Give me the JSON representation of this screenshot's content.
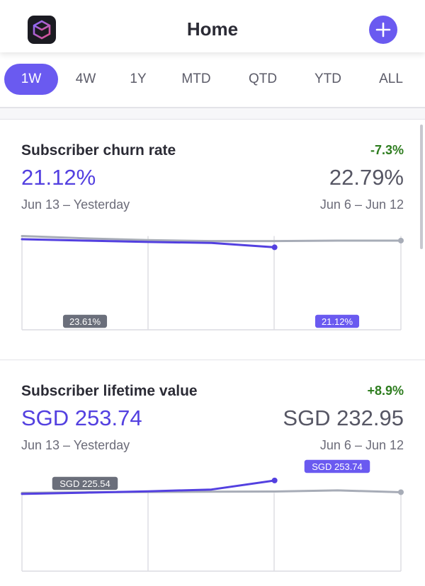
{
  "header": {
    "title": "Home",
    "logo_icon": "cube-logo-icon",
    "add_icon": "plus-icon"
  },
  "tabs": [
    {
      "label": "1W",
      "active": true
    },
    {
      "label": "4W",
      "active": false
    },
    {
      "label": "1Y",
      "active": false
    },
    {
      "label": "MTD",
      "active": false
    },
    {
      "label": "QTD",
      "active": false
    },
    {
      "label": "YTD",
      "active": false
    },
    {
      "label": "ALL",
      "active": false
    }
  ],
  "colors": {
    "accent": "#6a5af0",
    "current_series": "#5340e0",
    "previous_series": "#a7acb7",
    "positive_change": "#2e7d1f",
    "label_previous_bg": "#6b6f7b"
  },
  "metrics": [
    {
      "title": "Subscriber churn rate",
      "change": "-7.3%",
      "current_value": "21.12%",
      "current_period": "Jun 13 – Yesterday",
      "previous_value": "22.79%",
      "previous_period": "Jun 6 – Jun 12",
      "chart_labels": {
        "previous": "23.61%",
        "current": "21.12%"
      }
    },
    {
      "title": "Subscriber lifetime value",
      "change": "+8.9%",
      "current_value": "SGD 253.74",
      "current_period": "Jun 13 – Yesterday",
      "previous_value": "SGD 232.95",
      "previous_period": "Jun 6 – Jun 12",
      "chart_labels": {
        "previous": "SGD 225.54",
        "current": "SGD 253.74"
      }
    }
  ],
  "chart_data": [
    {
      "type": "line",
      "series": [
        {
          "values": [
            23.61,
            23.1,
            22.7,
            22.5,
            22.5,
            22.6,
            22.6
          ],
          "color": "#a7acb7"
        },
        {
          "values": [
            22.9,
            22.6,
            22.3,
            22.1,
            21.12
          ],
          "color": "#5340e0"
        }
      ],
      "ylim": [
        0,
        24
      ],
      "grid": true
    },
    {
      "type": "line",
      "series": [
        {
          "values": [
            225.54,
            226.8,
            227.6,
            228.0,
            228.6,
            231.2,
            227.0
          ],
          "color": "#a7acb7"
        },
        {
          "values": [
            223.0,
            226.0,
            229.0,
            233.0,
            253.74
          ],
          "color": "#5340e0"
        }
      ],
      "ylim": [
        0,
        260
      ],
      "grid": true
    }
  ]
}
